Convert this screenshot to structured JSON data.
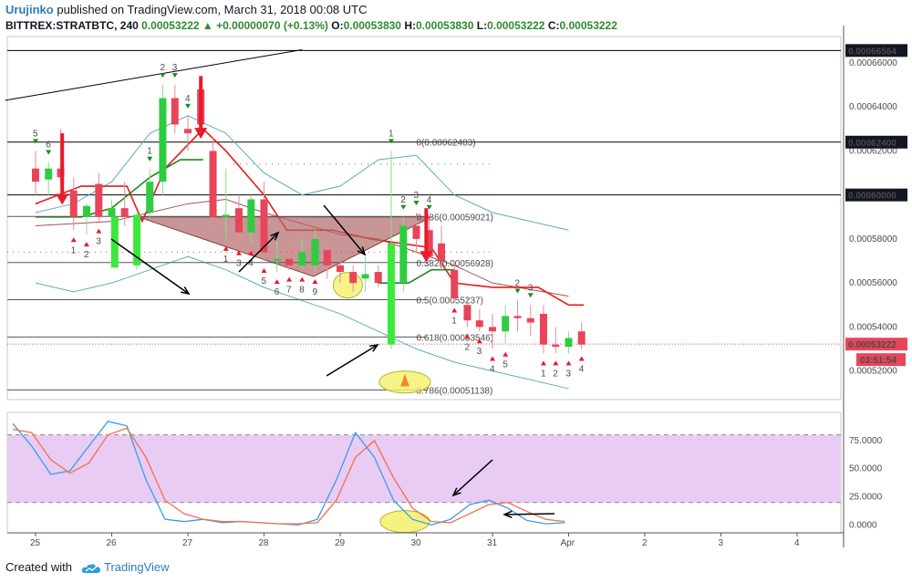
{
  "header": {
    "author": "Urujinko",
    "published": "published on TradingView.com, March 31, 2018 00:08 UTC",
    "symbol": "BITTREX:STRATBTC, 240",
    "last": "0.00053222",
    "change_arrow": "▲",
    "change": "+0.00000070 (+0.13%)",
    "o_label": "O:",
    "o": "0.00053830",
    "h_label": "H:",
    "h": "0.00053830",
    "l_label": "L:",
    "l": "0.00053222",
    "c_label": "C:",
    "c": "0.00053222"
  },
  "footer": {
    "created_with": "Created with",
    "brand": "TradingView",
    "logo_icon": "tradingview-cloud-icon"
  },
  "colors": {
    "up": "#2ecc40",
    "down": "#e8455a",
    "up_bright": "#3ce83c",
    "down_bright": "#e81a2a",
    "bollinger": "#5aaec0",
    "ma_red": "#e81a1a",
    "ma_brown": "#a0524b",
    "triangle_fill": "#b06a6a",
    "highlight": "#f4f06a",
    "stoch_zone": "#e8ccf4",
    "stoch_k": "#3d9be9",
    "stoch_d": "#f2704a",
    "fib": "#5a5a8a",
    "price_label_bg": "#e8455a"
  },
  "chart_data": [
    {
      "type": "candlestick",
      "timeframe": "240",
      "symbol": "BITTREX:STRATBTC",
      "x_ticks": [
        "25",
        "26",
        "27",
        "28",
        "29",
        "30",
        "31",
        "Apr",
        "2",
        "3",
        "4"
      ],
      "y_ticks": [
        "0.00066000",
        "0.00064000",
        "0.00062000",
        "0.00060000",
        "0.00058000",
        "0.00056000",
        "0.00054000",
        "0.00052000"
      ],
      "ylim": [
        0.000507,
        0.000672
      ],
      "price_tags": [
        {
          "value": 0.00066564,
          "label": "0.00066564",
          "style": "black"
        },
        {
          "value": 0.000624,
          "label": "0.00062400",
          "style": "black"
        },
        {
          "value": 0.0006,
          "label": "0.00060000",
          "style": "black"
        },
        {
          "value": 0.00053222,
          "label": "0.00053222",
          "style": "red"
        }
      ],
      "countdown": "03:51:54",
      "fib_levels": [
        {
          "label": "0(0.00062403)",
          "value": 0.00062403
        },
        {
          "label": "0.236(0.00059021)",
          "value": 0.00059021
        },
        {
          "label": "0.382(0.00056928)",
          "value": 0.00056928
        },
        {
          "label": "0.5(0.00055237)",
          "value": 0.00055237
        },
        {
          "label": "0.618(0.00053546)",
          "value": 0.00053546
        },
        {
          "label": "0.786(0.00051138)",
          "value": 0.00051138
        }
      ],
      "candles": [
        {
          "t": 0.0,
          "o": 0.000612,
          "h": 0.00062,
          "l": 0.0006,
          "c": 0.000606
        },
        {
          "t": 0.17,
          "o": 0.000607,
          "h": 0.000615,
          "l": 0.0006,
          "c": 0.000612
        },
        {
          "t": 0.33,
          "o": 0.000612,
          "h": 0.00063,
          "l": 0.000604,
          "c": 0.000608
        },
        {
          "t": 0.5,
          "o": 0.000602,
          "h": 0.000608,
          "l": 0.000584,
          "c": 0.00059
        },
        {
          "t": 0.67,
          "o": 0.00059,
          "h": 0.000596,
          "l": 0.000582,
          "c": 0.000595
        },
        {
          "t": 0.83,
          "o": 0.000605,
          "h": 0.00061,
          "l": 0.000588,
          "c": 0.00059
        },
        {
          "t": 1.0,
          "o": 0.00059,
          "h": 0.000598,
          "l": 0.000586,
          "c": 0.000594
        },
        {
          "t": 1.17,
          "o": 0.000594,
          "h": 0.000606,
          "l": 0.000586,
          "c": 0.00059
        },
        {
          "t": 1.33,
          "o": 0.000568,
          "h": 0.000592,
          "l": 0.000566,
          "c": 0.000591
        },
        {
          "t": 1.5,
          "o": 0.000592,
          "h": 0.000612,
          "l": 0.00059,
          "c": 0.000606
        },
        {
          "t": 1.67,
          "o": 0.000606,
          "h": 0.00065,
          "l": 0.0006,
          "c": 0.000644
        },
        {
          "t": 1.83,
          "o": 0.000644,
          "h": 0.00065,
          "l": 0.000628,
          "c": 0.000632
        },
        {
          "t": 2.0,
          "o": 0.00063,
          "h": 0.000636,
          "l": 0.00062,
          "c": 0.000628
        },
        {
          "t": 2.17,
          "o": 0.000648,
          "h": 0.000654,
          "l": 0.00063,
          "c": 0.000632
        },
        {
          "t": 2.33,
          "o": 0.00062,
          "h": 0.000626,
          "l": 0.000585,
          "c": 0.00059
        },
        {
          "t": 2.5,
          "o": 0.00059,
          "h": 0.000612,
          "l": 0.00058,
          "c": 0.000591
        },
        {
          "t": 2.67,
          "o": 0.000594,
          "h": 0.0006,
          "l": 0.000578,
          "c": 0.000583
        },
        {
          "t": 2.83,
          "o": 0.000583,
          "h": 0.0006,
          "l": 0.000578,
          "c": 0.000598
        },
        {
          "t": 3.0,
          "o": 0.000598,
          "h": 0.000606,
          "l": 0.00057,
          "c": 0.000574
        },
        {
          "t": 3.17,
          "o": 0.00057,
          "h": 0.00058,
          "l": 0.000565,
          "c": 0.000571
        },
        {
          "t": 3.33,
          "o": 0.000571,
          "h": 0.000578,
          "l": 0.000566,
          "c": 0.000568
        },
        {
          "t": 3.5,
          "o": 0.000568,
          "h": 0.00058,
          "l": 0.000566,
          "c": 0.000574
        },
        {
          "t": 3.67,
          "o": 0.000568,
          "h": 0.000584,
          "l": 0.000565,
          "c": 0.00058
        },
        {
          "t": 3.83,
          "o": 0.000575,
          "h": 0.00058,
          "l": 0.000562,
          "c": 0.000568
        },
        {
          "t": 4.0,
          "o": 0.000568,
          "h": 0.000574,
          "l": 0.00056,
          "c": 0.000565
        },
        {
          "t": 4.17,
          "o": 0.000565,
          "h": 0.000568,
          "l": 0.000556,
          "c": 0.00056
        },
        {
          "t": 4.33,
          "o": 0.000562,
          "h": 0.000572,
          "l": 0.000556,
          "c": 0.000564
        },
        {
          "t": 4.5,
          "o": 0.000565,
          "h": 0.000568,
          "l": 0.000558,
          "c": 0.00056
        },
        {
          "t": 4.67,
          "o": 0.000532,
          "h": 0.00062,
          "l": 0.00053,
          "c": 0.000578
        },
        {
          "t": 4.83,
          "o": 0.00056,
          "h": 0.00059,
          "l": 0.000556,
          "c": 0.000586
        },
        {
          "t": 5.0,
          "o": 0.000586,
          "h": 0.000592,
          "l": 0.000574,
          "c": 0.00058
        },
        {
          "t": 5.17,
          "o": 0.000584,
          "h": 0.00059,
          "l": 0.00057,
          "c": 0.000572
        },
        {
          "t": 5.33,
          "o": 0.000578,
          "h": 0.000586,
          "l": 0.000566,
          "c": 0.00057
        },
        {
          "t": 5.5,
          "o": 0.000566,
          "h": 0.00057,
          "l": 0.000552,
          "c": 0.000553
        },
        {
          "t": 5.67,
          "o": 0.00055,
          "h": 0.000554,
          "l": 0.00054,
          "c": 0.000543
        },
        {
          "t": 5.83,
          "o": 0.000543,
          "h": 0.000548,
          "l": 0.000538,
          "c": 0.00054
        },
        {
          "t": 6.0,
          "o": 0.00054,
          "h": 0.000546,
          "l": 0.00053,
          "c": 0.000538
        },
        {
          "t": 6.17,
          "o": 0.000538,
          "h": 0.00055,
          "l": 0.000532,
          "c": 0.000545
        },
        {
          "t": 6.33,
          "o": 0.000545,
          "h": 0.000552,
          "l": 0.000538,
          "c": 0.000544
        },
        {
          "t": 6.5,
          "o": 0.000544,
          "h": 0.00055,
          "l": 0.000536,
          "c": 0.000542
        },
        {
          "t": 6.67,
          "o": 0.000546,
          "h": 0.00055,
          "l": 0.000528,
          "c": 0.000532
        },
        {
          "t": 6.83,
          "o": 0.000532,
          "h": 0.00054,
          "l": 0.000528,
          "c": 0.000531
        },
        {
          "t": 7.0,
          "o": 0.000531,
          "h": 0.000538,
          "l": 0.000528,
          "c": 0.000535
        },
        {
          "t": 7.17,
          "o": 0.000538,
          "h": 0.000542,
          "l": 0.00053,
          "c": 0.000532
        }
      ],
      "td_labels_note": "TD sequential counts above/below candles",
      "td_labels": [
        {
          "t": 0.0,
          "text": "5",
          "pos": "above"
        },
        {
          "t": 0.17,
          "text": "6",
          "pos": "above"
        },
        {
          "t": 0.5,
          "text": "1",
          "pos": "below"
        },
        {
          "t": 0.67,
          "text": "2",
          "pos": "below"
        },
        {
          "t": 0.83,
          "text": "3",
          "pos": "below"
        },
        {
          "t": 1.5,
          "text": "1",
          "pos": "above"
        },
        {
          "t": 1.67,
          "text": "2",
          "pos": "above"
        },
        {
          "t": 1.83,
          "text": "3",
          "pos": "above"
        },
        {
          "t": 2.0,
          "text": "4",
          "pos": "above"
        },
        {
          "t": 2.5,
          "text": "1",
          "pos": "below"
        },
        {
          "t": 2.67,
          "text": "3",
          "pos": "below"
        },
        {
          "t": 2.83,
          "text": "4",
          "pos": "below"
        },
        {
          "t": 3.0,
          "text": "5",
          "pos": "below"
        },
        {
          "t": 3.17,
          "text": "6",
          "pos": "below"
        },
        {
          "t": 3.33,
          "text": "7",
          "pos": "below"
        },
        {
          "t": 3.5,
          "text": "8",
          "pos": "below"
        },
        {
          "t": 3.67,
          "text": "9",
          "pos": "below"
        },
        {
          "t": 4.67,
          "text": "1",
          "pos": "above"
        },
        {
          "t": 4.83,
          "text": "2",
          "pos": "above"
        },
        {
          "t": 5.0,
          "text": "3",
          "pos": "above"
        },
        {
          "t": 5.17,
          "text": "4",
          "pos": "above"
        },
        {
          "t": 5.5,
          "text": "1",
          "pos": "below"
        },
        {
          "t": 5.67,
          "text": "2",
          "pos": "below"
        },
        {
          "t": 5.83,
          "text": "3",
          "pos": "below"
        },
        {
          "t": 6.0,
          "text": "4",
          "pos": "below"
        },
        {
          "t": 6.17,
          "text": "5",
          "pos": "below"
        },
        {
          "t": 6.33,
          "text": "2",
          "pos": "above"
        },
        {
          "t": 6.5,
          "text": "3",
          "pos": "above"
        },
        {
          "t": 6.67,
          "text": "1",
          "pos": "below"
        },
        {
          "t": 6.83,
          "text": "2",
          "pos": "below"
        },
        {
          "t": 7.0,
          "text": "3",
          "pos": "below"
        },
        {
          "t": 7.17,
          "text": "4",
          "pos": "below"
        }
      ]
    },
    {
      "type": "line",
      "name": "Stochastic RSI",
      "y_ticks": [
        "75.0000",
        "50.0000",
        "25.0000",
        "0.0000"
      ],
      "ylim": [
        -7,
        100
      ],
      "bands": [
        20,
        80
      ],
      "series": [
        {
          "role": "k",
          "x": [
            0,
            0.25,
            0.5,
            0.75,
            1,
            1.25,
            1.5,
            1.75,
            2,
            2.25,
            2.5,
            2.75,
            3,
            3.25,
            3.5,
            3.75,
            4,
            4.25,
            4.5,
            4.75,
            5,
            5.25,
            5.5,
            5.75,
            6,
            6.25,
            6.5,
            6.75,
            7,
            7.25
          ],
          "y": [
            90,
            70,
            45,
            48,
            70,
            92,
            88,
            40,
            5,
            3,
            5,
            2,
            3,
            2,
            1,
            0,
            5,
            40,
            82,
            60,
            22,
            5,
            0,
            5,
            18,
            22,
            15,
            4,
            1,
            2
          ]
        },
        {
          "role": "d",
          "x": [
            0,
            0.25,
            0.5,
            0.75,
            1,
            1.25,
            1.5,
            1.75,
            2,
            2.25,
            2.5,
            2.75,
            3,
            3.25,
            3.5,
            3.75,
            4,
            4.25,
            4.5,
            4.75,
            5,
            5.25,
            5.5,
            5.75,
            6,
            6.25,
            6.5,
            6.75,
            7,
            7.25
          ],
          "y": [
            85,
            82,
            58,
            46,
            55,
            80,
            86,
            60,
            22,
            10,
            5,
            3,
            3,
            2,
            1,
            1,
            2,
            22,
            60,
            75,
            42,
            15,
            3,
            2,
            10,
            18,
            20,
            12,
            5,
            3
          ]
        }
      ]
    }
  ]
}
